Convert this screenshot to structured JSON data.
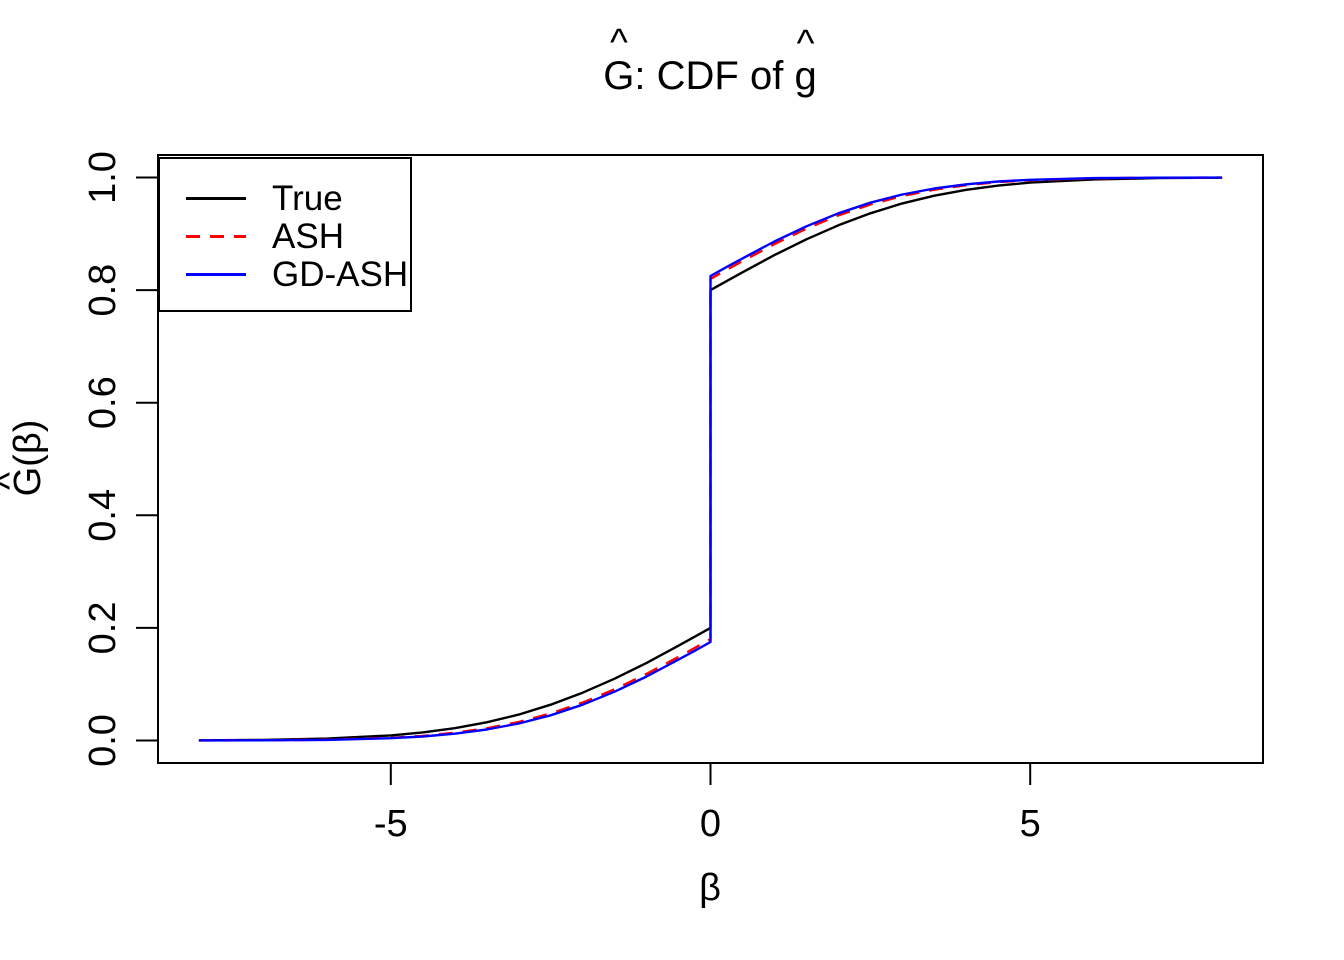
{
  "title": {
    "full": "Ĝ: CDF of ĝ",
    "parts": {
      "G": "G",
      "hat_G": "^",
      "middle": ": CDF of ",
      "g": "g",
      "hat_g": "^"
    }
  },
  "axes": {
    "x_label": "β",
    "y_label_full": "Ĝ(β)",
    "y_label_main": "G(β)",
    "y_label_hat": "^"
  },
  "legend": {
    "position": "topleft",
    "items": [
      {
        "label": "True",
        "color": "#000000",
        "style": "solid"
      },
      {
        "label": "ASH",
        "color": "#FF0000",
        "style": "dashed"
      },
      {
        "label": "GD-ASH",
        "color": "#0000FF",
        "style": "solid"
      }
    ]
  },
  "chart_data": {
    "type": "line",
    "title": "Ĝ: CDF of ĝ",
    "xlabel": "β",
    "ylabel": "Ĝ(β)",
    "xlim": [
      -8.64,
      8.64
    ],
    "ylim": [
      -0.04,
      1.04
    ],
    "grid": false,
    "legend_position": "topleft",
    "x_ticks": {
      "values": [
        -5,
        0,
        5
      ],
      "labels": [
        "-5",
        "0",
        "5"
      ]
    },
    "y_ticks": {
      "values": [
        0,
        0.2,
        0.4,
        0.6,
        0.8,
        1.0
      ],
      "labels": [
        "0.0",
        "0.2",
        "0.4",
        "0.6",
        "0.8",
        "1.0"
      ]
    },
    "jump_note": "all series have a vertical jump at x=0 (point mass at zero)",
    "series": [
      {
        "name": "True",
        "color": "#000000",
        "dash": "solid",
        "points": [
          [
            -8,
            0.0003
          ],
          [
            -7,
            0.001
          ],
          [
            -6,
            0.0033
          ],
          [
            -5,
            0.0091
          ],
          [
            -4.5,
            0.0144
          ],
          [
            -4,
            0.0219
          ],
          [
            -3.5,
            0.0323
          ],
          [
            -3,
            0.046
          ],
          [
            -2.5,
            0.0635
          ],
          [
            -2,
            0.0848
          ],
          [
            -1.5,
            0.1097
          ],
          [
            -1,
            0.1378
          ],
          [
            -0.5,
            0.1683
          ],
          [
            -0.25,
            0.1841
          ],
          [
            0,
            0.2
          ],
          [
            0,
            0.8
          ],
          [
            0.25,
            0.8159
          ],
          [
            0.5,
            0.8317
          ],
          [
            1,
            0.8622
          ],
          [
            1.5,
            0.8903
          ],
          [
            2,
            0.9152
          ],
          [
            2.5,
            0.9365
          ],
          [
            3,
            0.954
          ],
          [
            3.5,
            0.9677
          ],
          [
            4,
            0.9781
          ],
          [
            4.5,
            0.9856
          ],
          [
            5,
            0.9909
          ],
          [
            6,
            0.9967
          ],
          [
            7,
            0.999
          ],
          [
            8,
            0.9997
          ]
        ]
      },
      {
        "name": "ASH",
        "color": "#FF0000",
        "dash": "dashed",
        "points": [
          [
            -8,
            0.0001
          ],
          [
            -7,
            0.0003
          ],
          [
            -6,
            0.0014
          ],
          [
            -5,
            0.0047
          ],
          [
            -4.5,
            0.0082
          ],
          [
            -4,
            0.0136
          ],
          [
            -3.5,
            0.0216
          ],
          [
            -3,
            0.0328
          ],
          [
            -2.5,
            0.048
          ],
          [
            -2,
            0.0673
          ],
          [
            -1.5,
            0.0909
          ],
          [
            -1,
            0.1182
          ],
          [
            -0.5,
            0.1484
          ],
          [
            -0.25,
            0.1641
          ],
          [
            0,
            0.18
          ],
          [
            0,
            0.82
          ],
          [
            0.25,
            0.8359
          ],
          [
            0.5,
            0.8516
          ],
          [
            1,
            0.8818
          ],
          [
            1.5,
            0.9091
          ],
          [
            2,
            0.9327
          ],
          [
            2.5,
            0.952
          ],
          [
            3,
            0.9672
          ],
          [
            3.5,
            0.9784
          ],
          [
            4,
            0.9864
          ],
          [
            4.5,
            0.9918
          ],
          [
            5,
            0.9953
          ],
          [
            6,
            0.9986
          ],
          [
            7,
            0.9997
          ],
          [
            8,
            0.9999
          ]
        ]
      },
      {
        "name": "GD-ASH",
        "color": "#0000FF",
        "dash": "solid",
        "points": [
          [
            -8,
            0.0001
          ],
          [
            -7,
            0.0003
          ],
          [
            -6,
            0.0011
          ],
          [
            -5,
            0.004
          ],
          [
            -4.5,
            0.0071
          ],
          [
            -4,
            0.0121
          ],
          [
            -3.5,
            0.0195
          ],
          [
            -3,
            0.0302
          ],
          [
            -2.5,
            0.0448
          ],
          [
            -2,
            0.0636
          ],
          [
            -1.5,
            0.0867
          ],
          [
            -1,
            0.1136
          ],
          [
            -0.5,
            0.1436
          ],
          [
            -0.25,
            0.1591
          ],
          [
            0,
            0.175
          ],
          [
            0,
            0.825
          ],
          [
            0.25,
            0.8409
          ],
          [
            0.5,
            0.8564
          ],
          [
            1,
            0.8864
          ],
          [
            1.5,
            0.9133
          ],
          [
            2,
            0.9364
          ],
          [
            2.5,
            0.9552
          ],
          [
            3,
            0.9698
          ],
          [
            3.5,
            0.9805
          ],
          [
            4,
            0.9879
          ],
          [
            4.5,
            0.9929
          ],
          [
            5,
            0.996
          ],
          [
            6,
            0.9989
          ],
          [
            7,
            0.9997
          ],
          [
            8,
            0.9999
          ]
        ]
      }
    ]
  }
}
